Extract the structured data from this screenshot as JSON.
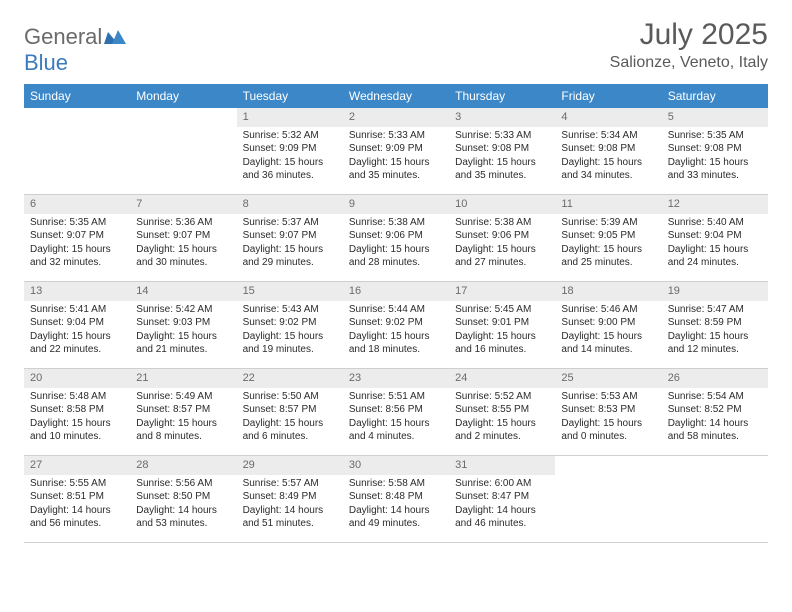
{
  "brand": {
    "general": "General",
    "blue": "Blue"
  },
  "title": "July 2025",
  "location": "Salionze, Veneto, Italy",
  "colors": {
    "header_bg": "#3b87c8",
    "header_fg": "#ffffff",
    "daynum_bg": "#ececec",
    "text": "#2b2b2b",
    "muted": "#6b6b6b",
    "rule": "#cfcfcf",
    "brand_gray": "#6b6b6b",
    "brand_blue": "#3b7bbf"
  },
  "dayHeaders": [
    "Sunday",
    "Monday",
    "Tuesday",
    "Wednesday",
    "Thursday",
    "Friday",
    "Saturday"
  ],
  "layout": {
    "startOffset": 2,
    "daysInMonth": 31
  },
  "days": {
    "1": {
      "sunrise": "Sunrise: 5:32 AM",
      "sunset": "Sunset: 9:09 PM",
      "daylight1": "Daylight: 15 hours",
      "daylight2": "and 36 minutes."
    },
    "2": {
      "sunrise": "Sunrise: 5:33 AM",
      "sunset": "Sunset: 9:09 PM",
      "daylight1": "Daylight: 15 hours",
      "daylight2": "and 35 minutes."
    },
    "3": {
      "sunrise": "Sunrise: 5:33 AM",
      "sunset": "Sunset: 9:08 PM",
      "daylight1": "Daylight: 15 hours",
      "daylight2": "and 35 minutes."
    },
    "4": {
      "sunrise": "Sunrise: 5:34 AM",
      "sunset": "Sunset: 9:08 PM",
      "daylight1": "Daylight: 15 hours",
      "daylight2": "and 34 minutes."
    },
    "5": {
      "sunrise": "Sunrise: 5:35 AM",
      "sunset": "Sunset: 9:08 PM",
      "daylight1": "Daylight: 15 hours",
      "daylight2": "and 33 minutes."
    },
    "6": {
      "sunrise": "Sunrise: 5:35 AM",
      "sunset": "Sunset: 9:07 PM",
      "daylight1": "Daylight: 15 hours",
      "daylight2": "and 32 minutes."
    },
    "7": {
      "sunrise": "Sunrise: 5:36 AM",
      "sunset": "Sunset: 9:07 PM",
      "daylight1": "Daylight: 15 hours",
      "daylight2": "and 30 minutes."
    },
    "8": {
      "sunrise": "Sunrise: 5:37 AM",
      "sunset": "Sunset: 9:07 PM",
      "daylight1": "Daylight: 15 hours",
      "daylight2": "and 29 minutes."
    },
    "9": {
      "sunrise": "Sunrise: 5:38 AM",
      "sunset": "Sunset: 9:06 PM",
      "daylight1": "Daylight: 15 hours",
      "daylight2": "and 28 minutes."
    },
    "10": {
      "sunrise": "Sunrise: 5:38 AM",
      "sunset": "Sunset: 9:06 PM",
      "daylight1": "Daylight: 15 hours",
      "daylight2": "and 27 minutes."
    },
    "11": {
      "sunrise": "Sunrise: 5:39 AM",
      "sunset": "Sunset: 9:05 PM",
      "daylight1": "Daylight: 15 hours",
      "daylight2": "and 25 minutes."
    },
    "12": {
      "sunrise": "Sunrise: 5:40 AM",
      "sunset": "Sunset: 9:04 PM",
      "daylight1": "Daylight: 15 hours",
      "daylight2": "and 24 minutes."
    },
    "13": {
      "sunrise": "Sunrise: 5:41 AM",
      "sunset": "Sunset: 9:04 PM",
      "daylight1": "Daylight: 15 hours",
      "daylight2": "and 22 minutes."
    },
    "14": {
      "sunrise": "Sunrise: 5:42 AM",
      "sunset": "Sunset: 9:03 PM",
      "daylight1": "Daylight: 15 hours",
      "daylight2": "and 21 minutes."
    },
    "15": {
      "sunrise": "Sunrise: 5:43 AM",
      "sunset": "Sunset: 9:02 PM",
      "daylight1": "Daylight: 15 hours",
      "daylight2": "and 19 minutes."
    },
    "16": {
      "sunrise": "Sunrise: 5:44 AM",
      "sunset": "Sunset: 9:02 PM",
      "daylight1": "Daylight: 15 hours",
      "daylight2": "and 18 minutes."
    },
    "17": {
      "sunrise": "Sunrise: 5:45 AM",
      "sunset": "Sunset: 9:01 PM",
      "daylight1": "Daylight: 15 hours",
      "daylight2": "and 16 minutes."
    },
    "18": {
      "sunrise": "Sunrise: 5:46 AM",
      "sunset": "Sunset: 9:00 PM",
      "daylight1": "Daylight: 15 hours",
      "daylight2": "and 14 minutes."
    },
    "19": {
      "sunrise": "Sunrise: 5:47 AM",
      "sunset": "Sunset: 8:59 PM",
      "daylight1": "Daylight: 15 hours",
      "daylight2": "and 12 minutes."
    },
    "20": {
      "sunrise": "Sunrise: 5:48 AM",
      "sunset": "Sunset: 8:58 PM",
      "daylight1": "Daylight: 15 hours",
      "daylight2": "and 10 minutes."
    },
    "21": {
      "sunrise": "Sunrise: 5:49 AM",
      "sunset": "Sunset: 8:57 PM",
      "daylight1": "Daylight: 15 hours",
      "daylight2": "and 8 minutes."
    },
    "22": {
      "sunrise": "Sunrise: 5:50 AM",
      "sunset": "Sunset: 8:57 PM",
      "daylight1": "Daylight: 15 hours",
      "daylight2": "and 6 minutes."
    },
    "23": {
      "sunrise": "Sunrise: 5:51 AM",
      "sunset": "Sunset: 8:56 PM",
      "daylight1": "Daylight: 15 hours",
      "daylight2": "and 4 minutes."
    },
    "24": {
      "sunrise": "Sunrise: 5:52 AM",
      "sunset": "Sunset: 8:55 PM",
      "daylight1": "Daylight: 15 hours",
      "daylight2": "and 2 minutes."
    },
    "25": {
      "sunrise": "Sunrise: 5:53 AM",
      "sunset": "Sunset: 8:53 PM",
      "daylight1": "Daylight: 15 hours",
      "daylight2": "and 0 minutes."
    },
    "26": {
      "sunrise": "Sunrise: 5:54 AM",
      "sunset": "Sunset: 8:52 PM",
      "daylight1": "Daylight: 14 hours",
      "daylight2": "and 58 minutes."
    },
    "27": {
      "sunrise": "Sunrise: 5:55 AM",
      "sunset": "Sunset: 8:51 PM",
      "daylight1": "Daylight: 14 hours",
      "daylight2": "and 56 minutes."
    },
    "28": {
      "sunrise": "Sunrise: 5:56 AM",
      "sunset": "Sunset: 8:50 PM",
      "daylight1": "Daylight: 14 hours",
      "daylight2": "and 53 minutes."
    },
    "29": {
      "sunrise": "Sunrise: 5:57 AM",
      "sunset": "Sunset: 8:49 PM",
      "daylight1": "Daylight: 14 hours",
      "daylight2": "and 51 minutes."
    },
    "30": {
      "sunrise": "Sunrise: 5:58 AM",
      "sunset": "Sunset: 8:48 PM",
      "daylight1": "Daylight: 14 hours",
      "daylight2": "and 49 minutes."
    },
    "31": {
      "sunrise": "Sunrise: 6:00 AM",
      "sunset": "Sunset: 8:47 PM",
      "daylight1": "Daylight: 14 hours",
      "daylight2": "and 46 minutes."
    }
  }
}
